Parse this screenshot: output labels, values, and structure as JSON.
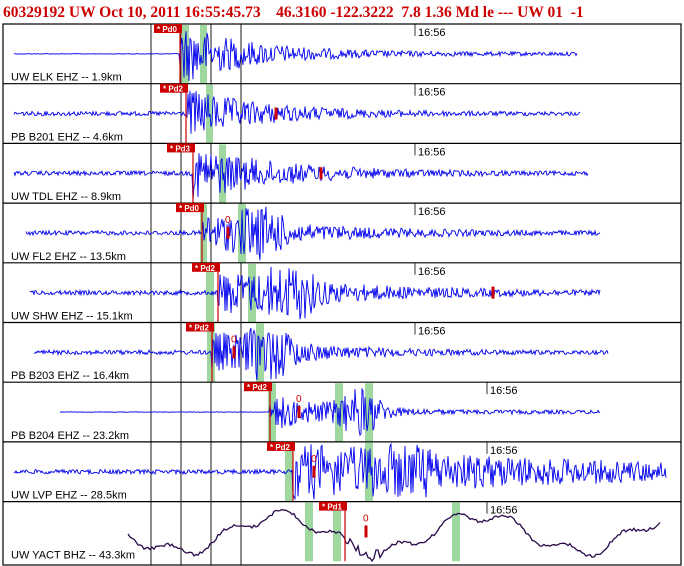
{
  "header": {
    "text": "60329192 UW Oct 10, 2011 16:55:45.73    46.3160 -122.3222  7.8 1.36 Md le --- UW 01  -1"
  },
  "colors": {
    "header": "#cc0000",
    "trace": "#0000ee",
    "trace_lowfreq": "#2a0a4a",
    "pick": "#cc0000",
    "pick_window": "#9ed89e",
    "grid": "#000000",
    "label": "#000000"
  },
  "time_label": "16:56",
  "traces": [
    {
      "station": "UW ELK EHZ -- 1.9km",
      "pick_label": "Pd0",
      "s_label": "",
      "pick_t": 0.0
    },
    {
      "station": "PB B201 EHZ -- 4.6km",
      "pick_label": "Pd2",
      "s_label": "",
      "pick_t": 0.0
    },
    {
      "station": "UW TDL EHZ -- 8.9km",
      "pick_label": "Pd3",
      "s_label": "",
      "pick_t": 0.0
    },
    {
      "station": "UW FL2 EHZ -- 13.5km",
      "pick_label": "Pd0",
      "s_label": "0",
      "pick_t": 0.0
    },
    {
      "station": "UW SHW EHZ -- 15.1km",
      "pick_label": "Pd2",
      "s_label": "",
      "pick_t": 0.0
    },
    {
      "station": "PB B203 EHZ -- 16.4km",
      "pick_label": "Pd2",
      "s_label": "0",
      "pick_t": 0.0
    },
    {
      "station": "PB B204 EHZ -- 23.2km",
      "pick_label": "Pd2",
      "s_label": "0",
      "pick_t": 0.0
    },
    {
      "station": "UW LVP EHZ -- 28.5km",
      "pick_label": "Pd2",
      "s_label": "0",
      "pick_t": 0.0
    },
    {
      "station": "UW YACT BHZ -- 43.3km",
      "pick_label": "Pd1",
      "s_label": "0",
      "pick_t": 0.0
    }
  ]
}
